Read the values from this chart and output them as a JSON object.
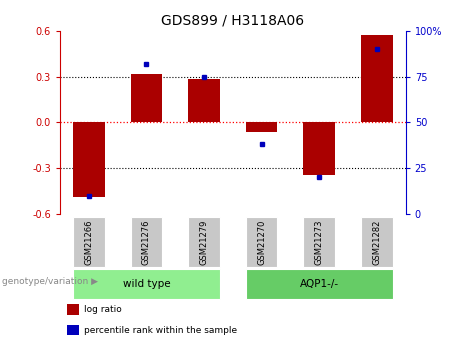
{
  "title": "GDS899 / H3118A06",
  "samples": [
    "GSM21266",
    "GSM21276",
    "GSM21279",
    "GSM21270",
    "GSM21273",
    "GSM21282"
  ],
  "log_ratio": [
    -0.49,
    0.315,
    0.285,
    -0.06,
    -0.345,
    0.575
  ],
  "percentile_rank": [
    10,
    82,
    75,
    38,
    20,
    90
  ],
  "groups": [
    {
      "label": "wild type",
      "indices": [
        0,
        1,
        2
      ],
      "color": "#90EE90"
    },
    {
      "label": "AQP1-/-",
      "indices": [
        3,
        4,
        5
      ],
      "color": "#66CC66"
    }
  ],
  "ylim_left": [
    -0.6,
    0.6
  ],
  "ylim_right": [
    0,
    100
  ],
  "yticks_left": [
    -0.6,
    -0.3,
    0.0,
    0.3,
    0.6
  ],
  "yticks_right": [
    0,
    25,
    50,
    75,
    100
  ],
  "ytick_labels_right": [
    "0",
    "25",
    "50",
    "75",
    "100%"
  ],
  "bar_color": "#AA0000",
  "dot_color": "#0000BB",
  "legend_items": [
    {
      "label": "log ratio",
      "color": "#AA0000"
    },
    {
      "label": "percentile rank within the sample",
      "color": "#0000BB"
    }
  ],
  "genotype_label": "genotype/variation",
  "bar_width": 0.55,
  "left_label_color": "#CC0000",
  "right_label_color": "#0000CC",
  "sample_box_color": "#C8C8C8",
  "group_sep_index": 3
}
